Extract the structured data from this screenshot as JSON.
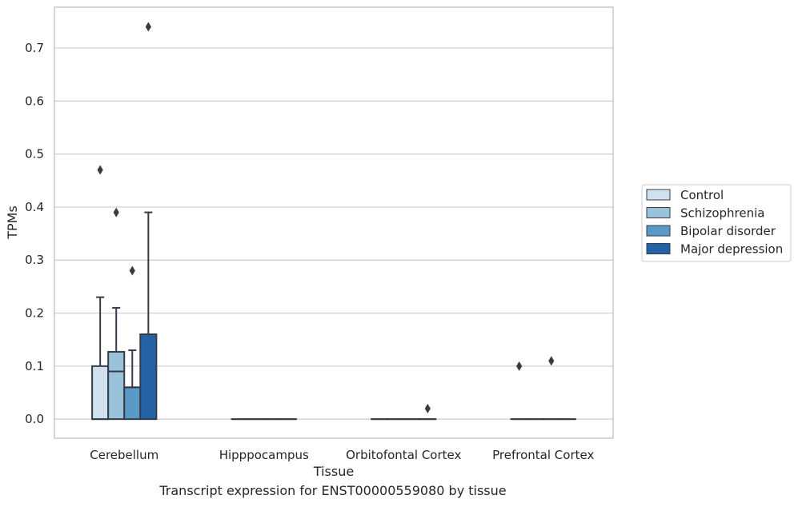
{
  "caption": "Transcript expression for ENST00000559080 by tissue",
  "colors": {
    "Control": "#cfe0ee",
    "Schizophrenia": "#9ac2db",
    "Bipolar disorder": "#5a9ac8",
    "Major depression": "#2462a7",
    "edge": "#363b45",
    "grid": "#cccccc",
    "spine": "#bfbfbf"
  },
  "chart_data": {
    "type": "box",
    "xlabel": "Tissue",
    "ylabel": "TPMs",
    "ylim": [
      -0.036,
      0.777
    ],
    "yticks": [
      0.0,
      0.1,
      0.2,
      0.3,
      0.4,
      0.5,
      0.6,
      0.7
    ],
    "grid": "horizontal",
    "legend_position": "right",
    "categories": [
      "Cerebellum",
      "Hipppocampus",
      "Orbitofontal Cortex",
      "Prefrontal Cortex"
    ],
    "series": [
      {
        "name": "Control",
        "boxes": [
          {
            "min": 0.0,
            "q1": 0.0,
            "median": 0.0,
            "q3": 0.1,
            "max": 0.23,
            "outliers": [
              0.47
            ]
          },
          {
            "min": 0.0,
            "q1": 0.0,
            "median": 0.0,
            "q3": 0.0,
            "max": 0.0,
            "outliers": []
          },
          {
            "min": 0.0,
            "q1": 0.0,
            "median": 0.0,
            "q3": 0.0,
            "max": 0.0,
            "outliers": []
          },
          {
            "min": 0.0,
            "q1": 0.0,
            "median": 0.0,
            "q3": 0.0,
            "max": 0.0,
            "outliers": [
              0.1
            ]
          }
        ]
      },
      {
        "name": "Schizophrenia",
        "boxes": [
          {
            "min": 0.0,
            "q1": 0.0,
            "median": 0.09,
            "q3": 0.127,
            "max": 0.21,
            "outliers": [
              0.39
            ]
          },
          {
            "min": 0.0,
            "q1": 0.0,
            "median": 0.0,
            "q3": 0.0,
            "max": 0.0,
            "outliers": []
          },
          {
            "min": 0.0,
            "q1": 0.0,
            "median": 0.0,
            "q3": 0.0,
            "max": 0.0,
            "outliers": []
          },
          {
            "min": 0.0,
            "q1": 0.0,
            "median": 0.0,
            "q3": 0.0,
            "max": 0.0,
            "outliers": []
          }
        ]
      },
      {
        "name": "Bipolar disorder",
        "boxes": [
          {
            "min": 0.0,
            "q1": 0.0,
            "median": 0.06,
            "q3": 0.06,
            "max": 0.13,
            "outliers": [
              0.28
            ]
          },
          {
            "min": 0.0,
            "q1": 0.0,
            "median": 0.0,
            "q3": 0.0,
            "max": 0.0,
            "outliers": []
          },
          {
            "min": 0.0,
            "q1": 0.0,
            "median": 0.0,
            "q3": 0.0,
            "max": 0.0,
            "outliers": []
          },
          {
            "min": 0.0,
            "q1": 0.0,
            "median": 0.0,
            "q3": 0.0,
            "max": 0.0,
            "outliers": [
              0.11
            ]
          }
        ]
      },
      {
        "name": "Major depression",
        "boxes": [
          {
            "min": 0.0,
            "q1": 0.0,
            "median": 0.16,
            "q3": 0.16,
            "max": 0.39,
            "outliers": [
              0.74
            ]
          },
          {
            "min": 0.0,
            "q1": 0.0,
            "median": 0.0,
            "q3": 0.0,
            "max": 0.0,
            "outliers": []
          },
          {
            "min": 0.0,
            "q1": 0.0,
            "median": 0.0,
            "q3": 0.0,
            "max": 0.0,
            "outliers": [
              0.02
            ]
          },
          {
            "min": 0.0,
            "q1": 0.0,
            "median": 0.0,
            "q3": 0.0,
            "max": 0.0,
            "outliers": []
          }
        ]
      }
    ]
  }
}
